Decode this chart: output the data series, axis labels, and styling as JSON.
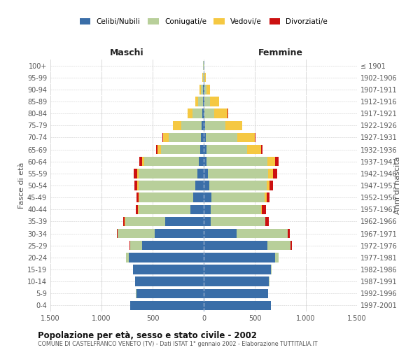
{
  "age_groups": [
    "0-4",
    "5-9",
    "10-14",
    "15-19",
    "20-24",
    "25-29",
    "30-34",
    "35-39",
    "40-44",
    "45-49",
    "50-54",
    "55-59",
    "60-64",
    "65-69",
    "70-74",
    "75-79",
    "80-84",
    "85-89",
    "90-94",
    "95-99",
    "100+"
  ],
  "birth_years": [
    "1997-2001",
    "1992-1996",
    "1987-1991",
    "1982-1986",
    "1977-1981",
    "1972-1976",
    "1967-1971",
    "1962-1966",
    "1957-1961",
    "1952-1956",
    "1947-1951",
    "1942-1946",
    "1937-1941",
    "1932-1936",
    "1927-1931",
    "1922-1926",
    "1917-1921",
    "1912-1916",
    "1907-1911",
    "1902-1906",
    "≤ 1901"
  ],
  "males_celibe": [
    720,
    660,
    670,
    690,
    730,
    600,
    480,
    380,
    130,
    100,
    80,
    65,
    50,
    35,
    30,
    20,
    15,
    8,
    5,
    3,
    2
  ],
  "males_coniugato": [
    0,
    1,
    2,
    5,
    30,
    120,
    360,
    390,
    510,
    530,
    560,
    570,
    530,
    380,
    310,
    200,
    95,
    45,
    20,
    5,
    3
  ],
  "males_vedovo": [
    0,
    0,
    0,
    0,
    1,
    1,
    1,
    2,
    3,
    5,
    10,
    15,
    20,
    40,
    60,
    80,
    50,
    30,
    15,
    5,
    1
  ],
  "males_divorziato": [
    0,
    0,
    0,
    0,
    2,
    5,
    10,
    15,
    20,
    25,
    30,
    35,
    30,
    8,
    5,
    2,
    0,
    0,
    0,
    0,
    0
  ],
  "females_celibe": [
    660,
    630,
    640,
    660,
    700,
    620,
    320,
    70,
    70,
    75,
    55,
    40,
    30,
    25,
    20,
    15,
    10,
    10,
    5,
    3,
    2
  ],
  "females_coniugato": [
    0,
    1,
    2,
    5,
    30,
    230,
    500,
    530,
    490,
    520,
    560,
    590,
    590,
    400,
    310,
    200,
    95,
    50,
    20,
    5,
    2
  ],
  "females_vedovo": [
    0,
    0,
    0,
    0,
    1,
    2,
    3,
    5,
    10,
    20,
    30,
    50,
    80,
    140,
    170,
    160,
    130,
    90,
    40,
    15,
    3
  ],
  "females_divorziato": [
    0,
    0,
    0,
    0,
    2,
    10,
    20,
    30,
    40,
    30,
    35,
    40,
    30,
    8,
    5,
    3,
    2,
    2,
    0,
    0,
    0
  ],
  "color_celibe": "#3a6ea8",
  "color_coniugato": "#b8cf9a",
  "color_vedovo": "#f5c842",
  "color_divorziato": "#cc1111",
  "title_main": "Popolazione per età, sesso e stato civile - 2002",
  "title_sub": "COMUNE DI CASTELFRANCO VENETO (TV) - Dati ISTAT 1° gennaio 2002 - Elaborazione TUTTITALIA.IT",
  "xlabel_left": "Maschi",
  "xlabel_right": "Femmine",
  "ylabel_left": "Fasce di età",
  "ylabel_right": "Anni di nascita",
  "xlim": 1500,
  "xticks": [
    -1500,
    -1000,
    -500,
    0,
    500,
    1000,
    1500
  ],
  "xticklabels": [
    "1.500",
    "1.000",
    "500",
    "0",
    "500",
    "1.000",
    "1.500"
  ],
  "legend_labels": [
    "Celibi/Nubili",
    "Coniugati/e",
    "Vedovi/e",
    "Divorziati/e"
  ],
  "background_color": "#ffffff",
  "grid_color": "#cccccc"
}
